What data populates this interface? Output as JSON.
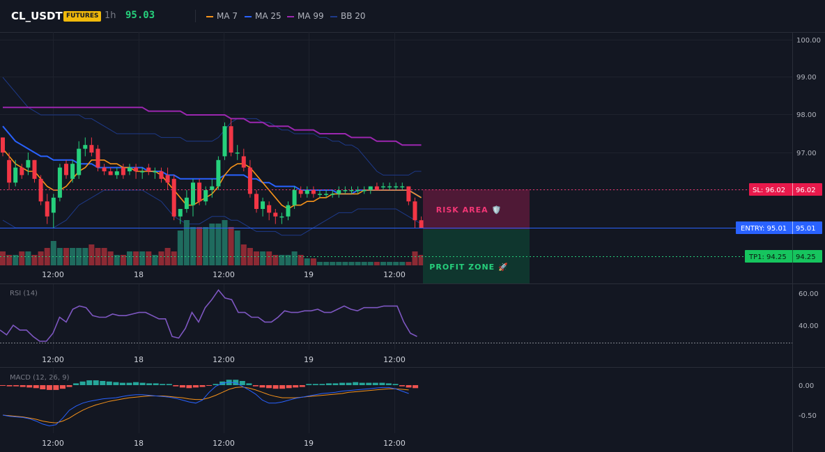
{
  "header": {
    "symbol": "CL_USDT",
    "badge": "FUTURES",
    "timeframe": "1h",
    "price": "95.03",
    "legend": [
      {
        "label": "MA 7",
        "color": "#f7931a"
      },
      {
        "label": "MA 25",
        "color": "#2962ff"
      },
      {
        "label": "MA 99",
        "color": "#9c27b0"
      },
      {
        "label": "BB 20",
        "color": "#1e3a8a"
      }
    ]
  },
  "colors": {
    "up": "#26d07c",
    "down": "#f23645",
    "vol_up": "#1f6b5e",
    "vol_down": "#8c2a34",
    "macd_pos": "#26a69a",
    "macd_neg": "#ef5350",
    "rsi": "#7e57c2",
    "bb": "#1e3a8a"
  },
  "labels": {
    "risk_area": "RISK AREA 🛡️",
    "profit_zone": "PROFIT ZONE 🚀",
    "sl_tag": "SL: 96.02",
    "sl_axis": "96.02",
    "entry_tag": "ENTRY: 95.01",
    "entry_axis": "95.01",
    "tp_tag": "TP1: 94.25",
    "tp_axis": "94.25",
    "rsi_title": "RSI (14)",
    "macd_title": "MACD (12, 26, 9)"
  },
  "chart_data": [
    {
      "type": "candlestick",
      "pane": "price",
      "ylim": [
        95.0,
        100.0
      ],
      "y_ticks": [
        "100.00",
        "99.00",
        "98.00",
        "97.00"
      ],
      "x_ticks": [
        "12:00",
        "18",
        "12:00",
        "19",
        "12:00"
      ],
      "levels": {
        "sl": 96.02,
        "entry": 95.01,
        "tp1": 94.25
      },
      "ohlc": [
        [
          97.4,
          97.4,
          96.9,
          97.0
        ],
        [
          96.8,
          97.0,
          96.0,
          96.2
        ],
        [
          96.2,
          96.8,
          96.1,
          96.6
        ],
        [
          96.6,
          96.7,
          96.3,
          96.4
        ],
        [
          96.6,
          97.0,
          96.4,
          96.8
        ],
        [
          96.8,
          96.8,
          96.2,
          96.3
        ],
        [
          96.3,
          96.4,
          95.6,
          95.7
        ],
        [
          95.7,
          95.9,
          95.1,
          95.3
        ],
        [
          95.4,
          95.9,
          95.0,
          95.8
        ],
        [
          95.8,
          96.7,
          95.7,
          96.6
        ],
        [
          96.7,
          96.8,
          96.3,
          96.4
        ],
        [
          96.3,
          96.8,
          96.2,
          96.7
        ],
        [
          96.4,
          97.3,
          96.3,
          97.1
        ],
        [
          97.1,
          97.4,
          96.9,
          97.2
        ],
        [
          97.2,
          97.4,
          96.9,
          97.0
        ],
        [
          97.1,
          97.2,
          96.5,
          96.6
        ],
        [
          96.6,
          96.7,
          96.4,
          96.5
        ],
        [
          96.5,
          96.6,
          96.4,
          96.4
        ],
        [
          96.4,
          96.6,
          96.3,
          96.5
        ],
        [
          96.6,
          96.7,
          96.3,
          96.4
        ],
        [
          96.5,
          96.7,
          96.4,
          96.6
        ],
        [
          96.6,
          96.7,
          96.3,
          96.5
        ],
        [
          96.5,
          96.6,
          96.3,
          96.5
        ],
        [
          96.6,
          96.7,
          96.4,
          96.5
        ],
        [
          96.5,
          96.6,
          96.3,
          96.5
        ],
        [
          96.5,
          96.6,
          96.2,
          96.3
        ],
        [
          96.4,
          96.6,
          96.0,
          96.2
        ],
        [
          96.3,
          96.4,
          95.2,
          95.3
        ],
        [
          95.3,
          95.5,
          95.1,
          95.5
        ],
        [
          95.5,
          96.0,
          95.4,
          95.8
        ],
        [
          95.6,
          96.3,
          95.3,
          96.2
        ],
        [
          96.2,
          96.3,
          95.6,
          95.7
        ],
        [
          95.7,
          96.1,
          95.6,
          96.0
        ],
        [
          96.0,
          96.3,
          95.8,
          96.1
        ],
        [
          96.1,
          96.9,
          96.0,
          96.8
        ],
        [
          96.9,
          97.8,
          96.8,
          97.7
        ],
        [
          97.7,
          97.9,
          96.9,
          97.0
        ],
        [
          97.0,
          97.2,
          96.8,
          97.0
        ],
        [
          96.9,
          97.1,
          96.5,
          96.6
        ],
        [
          96.6,
          96.8,
          95.8,
          95.9
        ],
        [
          95.9,
          96.0,
          95.4,
          95.5
        ],
        [
          95.5,
          95.8,
          95.3,
          95.7
        ],
        [
          95.6,
          95.7,
          95.2,
          95.4
        ],
        [
          95.4,
          95.5,
          95.1,
          95.3
        ],
        [
          95.3,
          95.4,
          95.1,
          95.3
        ],
        [
          95.3,
          95.7,
          95.2,
          95.6
        ],
        [
          95.6,
          96.1,
          95.5,
          96.0
        ],
        [
          96.0,
          96.1,
          95.8,
          95.9
        ],
        [
          95.9,
          96.1,
          95.8,
          96.0
        ],
        [
          96.0,
          96.1,
          95.8,
          95.9
        ],
        [
          95.9,
          96.0,
          95.8,
          95.9
        ],
        [
          95.9,
          96.0,
          95.8,
          95.9
        ],
        [
          95.9,
          96.0,
          95.8,
          95.9
        ],
        [
          95.9,
          96.1,
          95.8,
          96.0
        ],
        [
          96.0,
          96.1,
          95.9,
          96.0
        ],
        [
          96.0,
          96.1,
          95.9,
          96.0
        ],
        [
          96.0,
          96.1,
          95.9,
          96.0
        ],
        [
          96.0,
          96.1,
          95.9,
          96.0
        ],
        [
          96.0,
          96.1,
          95.9,
          96.1
        ],
        [
          96.1,
          96.2,
          96.0,
          96.0
        ],
        [
          96.1,
          96.2,
          96.0,
          96.1
        ],
        [
          96.1,
          96.2,
          96.0,
          96.1
        ],
        [
          96.1,
          96.2,
          96.0,
          96.1
        ],
        [
          96.1,
          96.2,
          96.0,
          96.1
        ],
        [
          96.1,
          96.1,
          95.6,
          95.7
        ],
        [
          95.7,
          95.8,
          95.0,
          95.2
        ],
        [
          95.2,
          95.3,
          95.0,
          95.0
        ]
      ],
      "ma7": [
        97.1,
        96.9,
        96.7,
        96.6,
        96.5,
        96.5,
        96.3,
        96.1,
        96.0,
        96.0,
        96.1,
        96.3,
        96.5,
        96.6,
        96.8,
        96.8,
        96.8,
        96.7,
        96.7,
        96.6,
        96.6,
        96.5,
        96.5,
        96.5,
        96.5,
        96.4,
        96.2,
        96.0,
        95.8,
        95.6,
        95.6,
        95.7,
        95.8,
        95.9,
        96.1,
        96.4,
        96.6,
        96.7,
        96.7,
        96.6,
        96.4,
        96.2,
        96.0,
        95.8,
        95.6,
        95.5,
        95.6,
        95.6,
        95.7,
        95.7,
        95.8,
        95.8,
        95.9,
        95.9,
        95.9,
        95.9,
        95.9,
        96.0,
        96.0,
        96.0,
        96.0,
        96.0,
        96.0,
        96.0,
        96.0,
        95.9,
        95.8
      ],
      "ma25": [
        97.7,
        97.5,
        97.3,
        97.2,
        97.1,
        97.0,
        96.9,
        96.9,
        96.8,
        96.8,
        96.8,
        96.8,
        96.7,
        96.7,
        96.7,
        96.6,
        96.6,
        96.6,
        96.6,
        96.6,
        96.6,
        96.6,
        96.6,
        96.5,
        96.5,
        96.5,
        96.4,
        96.4,
        96.3,
        96.3,
        96.3,
        96.3,
        96.3,
        96.3,
        96.3,
        96.4,
        96.4,
        96.4,
        96.4,
        96.3,
        96.3,
        96.2,
        96.2,
        96.1,
        96.1,
        96.1,
        96.1,
        96.0,
        96.0,
        96.0,
        96.0,
        96.0,
        96.0,
        95.9,
        95.9,
        95.9,
        96.0,
        96.0,
        96.0,
        96.0,
        96.0,
        96.0,
        96.0,
        96.0,
        96.0,
        95.9,
        95.8
      ],
      "ma99": [
        98.2,
        98.2,
        98.2,
        98.2,
        98.2,
        98.2,
        98.2,
        98.2,
        98.2,
        98.2,
        98.2,
        98.2,
        98.2,
        98.2,
        98.2,
        98.2,
        98.2,
        98.2,
        98.2,
        98.2,
        98.2,
        98.2,
        98.2,
        98.1,
        98.1,
        98.1,
        98.1,
        98.1,
        98.1,
        98.0,
        98.0,
        98.0,
        98.0,
        98.0,
        98.0,
        98.0,
        97.9,
        97.9,
        97.9,
        97.8,
        97.8,
        97.8,
        97.7,
        97.7,
        97.7,
        97.7,
        97.6,
        97.6,
        97.6,
        97.6,
        97.5,
        97.5,
        97.5,
        97.5,
        97.5,
        97.4,
        97.4,
        97.4,
        97.4,
        97.3,
        97.3,
        97.3,
        97.3,
        97.2,
        97.2,
        97.2,
        97.2
      ],
      "bb_upper": [
        99.0,
        98.8,
        98.6,
        98.4,
        98.2,
        98.1,
        98.0,
        98.0,
        98.0,
        98.0,
        98.0,
        98.0,
        98.0,
        97.9,
        97.9,
        97.8,
        97.7,
        97.6,
        97.5,
        97.5,
        97.5,
        97.5,
        97.5,
        97.5,
        97.5,
        97.4,
        97.4,
        97.4,
        97.4,
        97.3,
        97.3,
        97.3,
        97.3,
        97.3,
        97.4,
        97.6,
        97.8,
        97.9,
        97.9,
        97.9,
        97.9,
        97.8,
        97.8,
        97.7,
        97.6,
        97.6,
        97.5,
        97.5,
        97.5,
        97.5,
        97.4,
        97.4,
        97.3,
        97.3,
        97.2,
        97.2,
        97.1,
        96.9,
        96.7,
        96.5,
        96.4,
        96.4,
        96.4,
        96.4,
        96.4,
        96.5,
        96.5
      ],
      "bb_lower": [
        95.2,
        95.1,
        95.0,
        95.0,
        95.0,
        95.0,
        95.0,
        95.0,
        95.0,
        95.1,
        95.2,
        95.4,
        95.6,
        95.7,
        95.8,
        95.9,
        96.0,
        96.0,
        96.0,
        96.0,
        96.0,
        96.0,
        96.0,
        95.9,
        95.8,
        95.7,
        95.5,
        95.3,
        95.2,
        95.1,
        95.1,
        95.1,
        95.2,
        95.3,
        95.3,
        95.3,
        95.2,
        95.2,
        95.1,
        95.0,
        94.9,
        94.9,
        94.9,
        94.9,
        94.8,
        94.8,
        94.8,
        94.8,
        94.9,
        95.0,
        95.1,
        95.2,
        95.3,
        95.4,
        95.4,
        95.4,
        95.5,
        95.5,
        95.5,
        95.5,
        95.5,
        95.5,
        95.5,
        95.4,
        95.3,
        95.2,
        95.1
      ]
    },
    {
      "type": "bar",
      "pane": "volume",
      "values": [
        4,
        3,
        3,
        4,
        4,
        3,
        4,
        5,
        7,
        5,
        5,
        5,
        5,
        5,
        6,
        5,
        5,
        4,
        3,
        3,
        4,
        4,
        4,
        4,
        3,
        4,
        5,
        4,
        10,
        13,
        11,
        11,
        11,
        12,
        12,
        13,
        11,
        10,
        6,
        5,
        4,
        4,
        4,
        3,
        3,
        3,
        4,
        3,
        2,
        2,
        1,
        1,
        1,
        1,
        1,
        1,
        1,
        1,
        1,
        1,
        1,
        1,
        1,
        1,
        1,
        4,
        3
      ]
    },
    {
      "type": "line",
      "pane": "rsi",
      "title": "RSI (14)",
      "ylim": [
        25,
        65
      ],
      "y_ticks": [
        "60.00",
        "40.00"
      ],
      "values": [
        37,
        34,
        40,
        37,
        37,
        33,
        30,
        30,
        35,
        45,
        42,
        50,
        52,
        51,
        46,
        45,
        45,
        47,
        46,
        46,
        47,
        48,
        48,
        46,
        44,
        44,
        33,
        32,
        38,
        48,
        42,
        51,
        56,
        62,
        57,
        56,
        48,
        48,
        45,
        45,
        42,
        42,
        45,
        49,
        48,
        48,
        49,
        49,
        50,
        48,
        48,
        50,
        52,
        50,
        49,
        51,
        51,
        51,
        52,
        52,
        52,
        42,
        35,
        33
      ],
      "threshold": 30
    },
    {
      "type": "bar",
      "pane": "macd",
      "title": "MACD (12, 26, 9)",
      "ylim": [
        -0.75,
        0.2
      ],
      "y_ticks": [
        "0.00",
        "-0.50"
      ],
      "values": [
        -0.01,
        -0.02,
        -0.02,
        -0.03,
        -0.04,
        -0.05,
        -0.07,
        -0.08,
        -0.08,
        -0.06,
        -0.03,
        0.03,
        0.06,
        0.08,
        0.08,
        0.07,
        0.06,
        0.05,
        0.04,
        0.04,
        0.05,
        0.04,
        0.03,
        0.03,
        0.02,
        0.02,
        -0.02,
        -0.04,
        -0.05,
        -0.04,
        -0.03,
        -0.01,
        0.02,
        0.06,
        0.09,
        0.09,
        0.07,
        0.03,
        -0.02,
        -0.04,
        -0.05,
        -0.06,
        -0.06,
        -0.05,
        -0.04,
        -0.03,
        0.02,
        0.02,
        0.02,
        0.03,
        0.03,
        0.04,
        0.04,
        0.05,
        0.04,
        0.04,
        0.04,
        0.04,
        0.03,
        0.02,
        -0.02,
        -0.04,
        -0.05
      ],
      "macd_line": [
        -0.5,
        -0.52,
        -0.53,
        -0.54,
        -0.56,
        -0.6,
        -0.65,
        -0.68,
        -0.66,
        -0.55,
        -0.42,
        -0.35,
        -0.3,
        -0.27,
        -0.25,
        -0.23,
        -0.22,
        -0.21,
        -0.19,
        -0.17,
        -0.16,
        -0.16,
        -0.17,
        -0.18,
        -0.19,
        -0.2,
        -0.22,
        -0.25,
        -0.28,
        -0.3,
        -0.25,
        -0.12,
        -0.02,
        0.03,
        0.05,
        0.04,
        -0.02,
        -0.08,
        -0.15,
        -0.25,
        -0.3,
        -0.3,
        -0.28,
        -0.25,
        -0.22,
        -0.2,
        -0.18,
        -0.16,
        -0.14,
        -0.13,
        -0.12,
        -0.1,
        -0.09,
        -0.08,
        -0.07,
        -0.06,
        -0.05,
        -0.04,
        -0.04,
        -0.06,
        -0.1,
        -0.14
      ],
      "signal_line": [
        -0.5,
        -0.51,
        -0.52,
        -0.53,
        -0.55,
        -0.57,
        -0.6,
        -0.62,
        -0.63,
        -0.6,
        -0.55,
        -0.48,
        -0.42,
        -0.37,
        -0.33,
        -0.3,
        -0.27,
        -0.25,
        -0.23,
        -0.21,
        -0.2,
        -0.19,
        -0.18,
        -0.18,
        -0.18,
        -0.19,
        -0.2,
        -0.21,
        -0.23,
        -0.24,
        -0.24,
        -0.21,
        -0.17,
        -0.12,
        -0.07,
        -0.04,
        -0.03,
        -0.05,
        -0.08,
        -0.12,
        -0.16,
        -0.19,
        -0.21,
        -0.21,
        -0.21,
        -0.2,
        -0.19,
        -0.18,
        -0.17,
        -0.16,
        -0.15,
        -0.14,
        -0.12,
        -0.11,
        -0.1,
        -0.09,
        -0.08,
        -0.07,
        -0.06,
        -0.06,
        -0.07,
        -0.08
      ]
    }
  ]
}
